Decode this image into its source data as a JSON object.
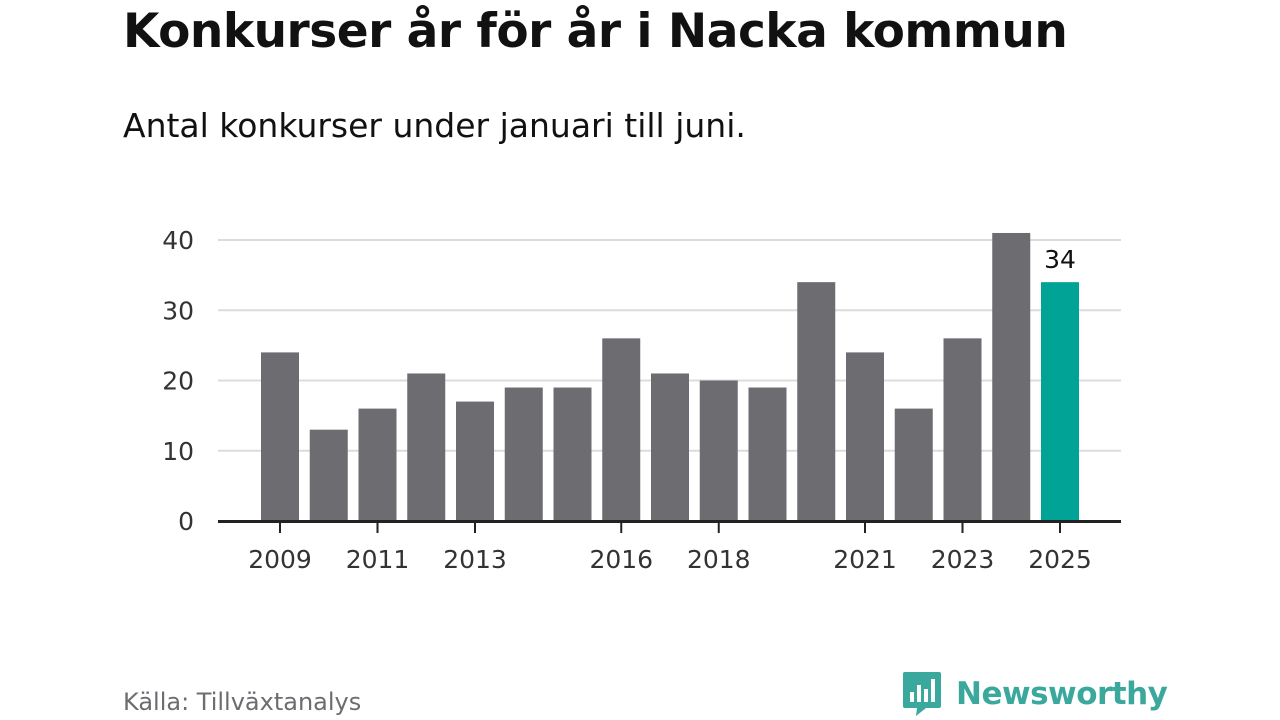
{
  "title": "Konkurser år för år i Nacka kommun",
  "subtitle": "Antal konkurser under januari till juni.",
  "source": "Källa: Tillväxtanalys",
  "brand": {
    "name": "Newsworthy",
    "logo_icon": "bar-chart-bubble-icon",
    "color": "#3aa89c"
  },
  "colors": {
    "bar": "#6d6c71",
    "highlight": "#00a396",
    "grid": "#dcdcdc",
    "axis": "#222222",
    "text": "#333333"
  },
  "chart_data": {
    "type": "bar",
    "title": "Konkurser år för år i Nacka kommun",
    "subtitle": "Antal konkurser under januari till juni.",
    "categories": [
      2009,
      2010,
      2011,
      2012,
      2013,
      2014,
      2015,
      2016,
      2017,
      2018,
      2019,
      2020,
      2021,
      2022,
      2023,
      2024,
      2025
    ],
    "values": [
      24,
      13,
      16,
      21,
      17,
      19,
      19,
      26,
      21,
      20,
      19,
      34,
      24,
      16,
      26,
      41,
      34
    ],
    "x_tick_labels": [
      "2009",
      "2011",
      "2013",
      "2016",
      "2018",
      "2021",
      "2023",
      "2025"
    ],
    "y_ticks": [
      0,
      10,
      20,
      30,
      40
    ],
    "ylim": [
      0,
      40
    ],
    "grid": true,
    "highlight": {
      "category": 2025,
      "label": "34"
    },
    "xlabel": "",
    "ylabel": ""
  }
}
